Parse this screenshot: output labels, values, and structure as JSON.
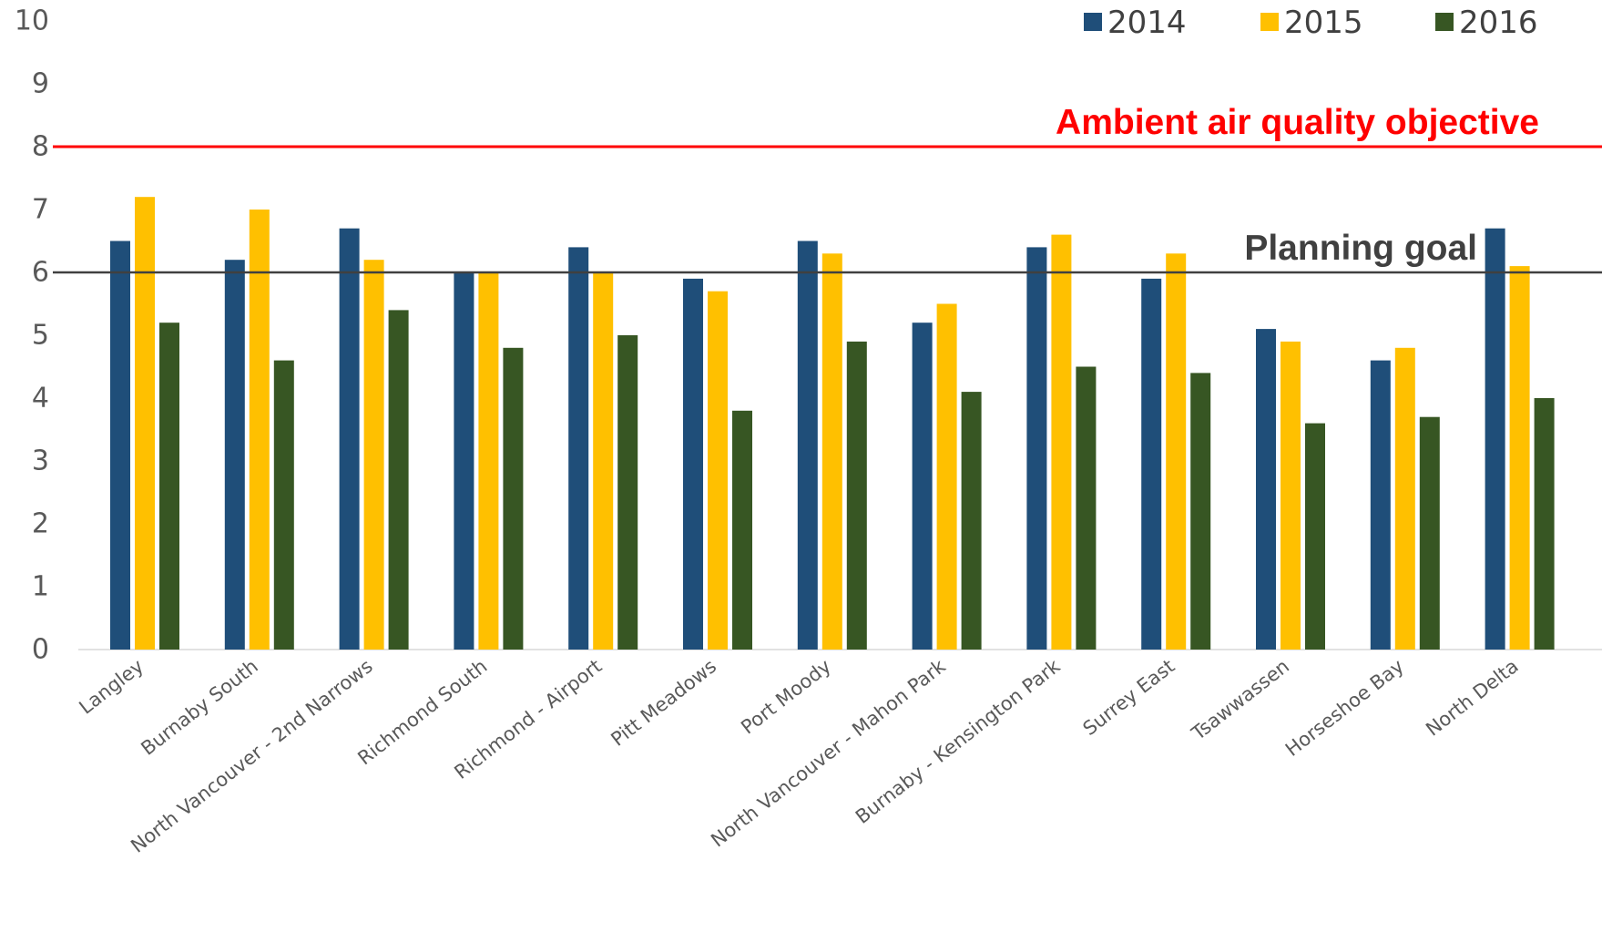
{
  "chart_data": {
    "type": "bar",
    "title": "",
    "xlabel": "",
    "ylabel": "",
    "ylim": [
      0,
      10
    ],
    "yticks": [
      0,
      1,
      2,
      3,
      4,
      5,
      6,
      7,
      8,
      9,
      10
    ],
    "grid": false,
    "legend_position": "top-right",
    "categories": [
      "Langley",
      "Burnaby South",
      "North Vancouver - 2nd Narrows",
      "Richmond South",
      "Richmond - Airport",
      "Pitt Meadows",
      "Port Moody",
      "North Vancouver - Mahon Park",
      "Burnaby - Kensington Park",
      "Surrey East",
      "Tsawwassen",
      "Horseshoe Bay",
      "North Delta"
    ],
    "series": [
      {
        "name": "2014",
        "color": "#1f4e79",
        "values": [
          6.5,
          6.2,
          6.7,
          6.0,
          6.4,
          5.9,
          6.5,
          5.2,
          6.4,
          5.9,
          5.1,
          4.6,
          6.7
        ]
      },
      {
        "name": "2015",
        "color": "#ffc000",
        "values": [
          7.2,
          7.0,
          6.2,
          6.0,
          6.0,
          5.7,
          6.3,
          5.5,
          6.6,
          6.3,
          4.9,
          4.8,
          6.1
        ]
      },
      {
        "name": "2016",
        "color": "#375623",
        "values": [
          5.2,
          4.6,
          5.4,
          4.8,
          5.0,
          3.8,
          4.9,
          4.1,
          4.5,
          4.4,
          3.6,
          3.7,
          4.0
        ]
      }
    ],
    "reference_lines": [
      {
        "label": "Ambient air quality objective",
        "value": 8,
        "color": "#ff0000"
      },
      {
        "label": "Planning goal",
        "value": 6,
        "color": "#404040"
      }
    ]
  }
}
